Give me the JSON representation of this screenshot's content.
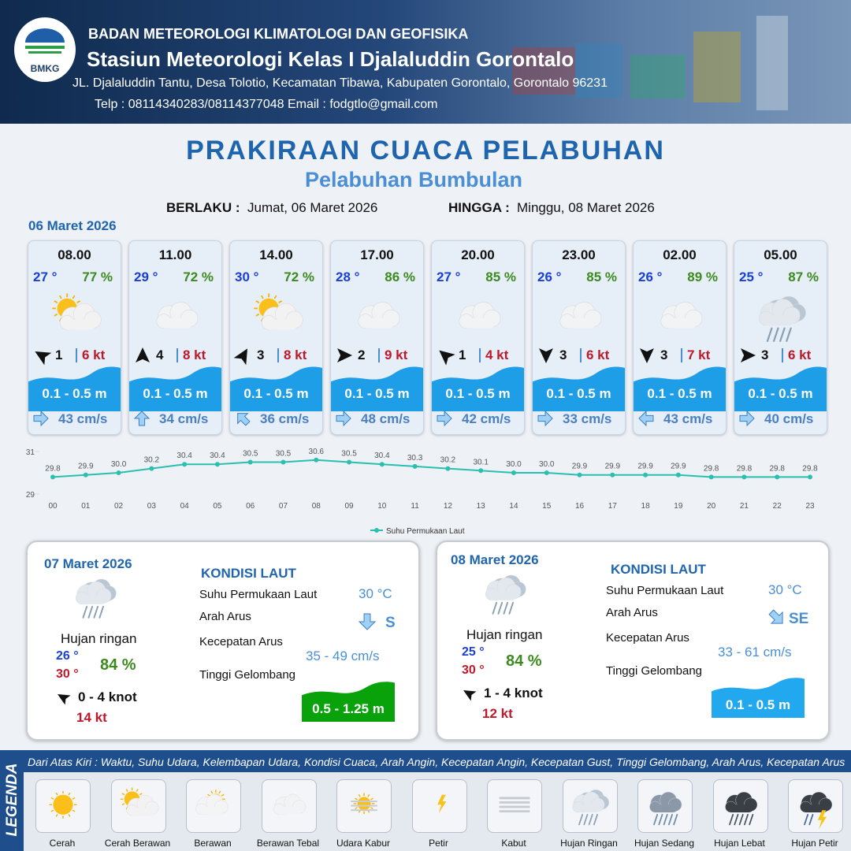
{
  "header": {
    "logo": "BMKG",
    "org": "BADAN METEOROLOGI KLIMATOLOGI DAN GEOFISIKA",
    "station": "Stasiun Meteorologi Kelas I Djalaluddin Gorontalo",
    "address": "JL. Djalaluddin Tantu, Desa Tolotio, Kecamatan Tibawa, Kabupaten Gorontalo, Gorontalo 96231",
    "contact": "Telp : 08114340283/08114377048 Email : fodgtlo@gmail.com"
  },
  "title": "PRAKIRAAN CUACA PELABUHAN",
  "subtitle": "Pelabuhan Bumbulan",
  "validity": {
    "from_label": "BERLAKU :",
    "from": "Jumat, 06 Maret 2026",
    "to_label": "HINGGA :",
    "to": "Minggu, 08 Maret 2026"
  },
  "day1": {
    "date": "06 Maret 2026",
    "cards": [
      {
        "time": "08.00",
        "temp": "27 °",
        "humidity": "77 %",
        "wind": "1",
        "gust": "6 kt",
        "wave": "0.1 - 0.5 m",
        "current": "43 cm/s"
      },
      {
        "time": "11.00",
        "temp": "29 °",
        "humidity": "72 %",
        "wind": "4",
        "gust": "8 kt",
        "wave": "0.1 - 0.5 m",
        "current": "34 cm/s"
      },
      {
        "time": "14.00",
        "temp": "30 °",
        "humidity": "72 %",
        "wind": "3",
        "gust": "8 kt",
        "wave": "0.1 - 0.5 m",
        "current": "36 cm/s"
      },
      {
        "time": "17.00",
        "temp": "28 °",
        "humidity": "86 %",
        "wind": "2",
        "gust": "9 kt",
        "wave": "0.1 - 0.5 m",
        "current": "48 cm/s"
      },
      {
        "time": "20.00",
        "temp": "27 °",
        "humidity": "85 %",
        "wind": "1",
        "gust": "4 kt",
        "wave": "0.1 - 0.5 m",
        "current": "42 cm/s"
      },
      {
        "time": "23.00",
        "temp": "26 °",
        "humidity": "85 %",
        "wind": "3",
        "gust": "6 kt",
        "wave": "0.1 - 0.5 m",
        "current": "33 cm/s"
      },
      {
        "time": "02.00",
        "temp": "26 °",
        "humidity": "89 %",
        "wind": "3",
        "gust": "7 kt",
        "wave": "0.1 - 0.5 m",
        "current": "43 cm/s"
      },
      {
        "time": "05.00",
        "temp": "25 °",
        "humidity": "87 %",
        "wind": "3",
        "gust": "6 kt",
        "wave": "0.1 - 0.5 m",
        "current": "40 cm/s"
      }
    ]
  },
  "chart_data": {
    "type": "line",
    "categories": [
      "00",
      "01",
      "02",
      "03",
      "04",
      "05",
      "06",
      "07",
      "08",
      "09",
      "10",
      "11",
      "12",
      "13",
      "14",
      "15",
      "16",
      "17",
      "18",
      "19",
      "20",
      "21",
      "22",
      "23"
    ],
    "series": [
      {
        "name": "Suhu Permukaan Laut",
        "color": "#2bbfb0",
        "values": [
          29.8,
          29.9,
          30.0,
          30.2,
          30.4,
          30.4,
          30.5,
          30.5,
          30.6,
          30.5,
          30.4,
          30.3,
          30.2,
          30.1,
          30.0,
          30.0,
          29.9,
          29.9,
          29.9,
          29.9,
          29.8,
          29.8,
          29.8,
          29.8
        ],
        "value_labels": [
          "29.8",
          "29.9",
          "30.0",
          "30.2",
          "30.4",
          "30.4",
          "30.5",
          "30.5",
          "30.6",
          "30.5",
          "30.4",
          "30.3",
          "30.2",
          "30.1",
          "30.0",
          "30.0",
          "29.9",
          "29.9",
          "29.9",
          "29.9",
          "29.8",
          "29.8",
          "29.8",
          "29.8"
        ]
      }
    ],
    "ylim": [
      29,
      31
    ],
    "yticks": [
      29,
      31
    ]
  },
  "days": [
    {
      "date": "07 Maret 2026",
      "weather": "Hujan ringan",
      "temp_min": "26 °",
      "temp_max": "30 °",
      "humidity": "84 %",
      "wind": "0  - 4 knot",
      "gust": "14 kt",
      "sea_title": "KONDISI LAUT",
      "sea_labels": [
        "Suhu Permukaan Laut",
        "Arah Arus",
        "Kecepatan Arus",
        "Tinggi Gelombang"
      ],
      "sst": "30 °C",
      "current_dir": "S",
      "current_speed": "35  - 49 cm/s",
      "wave": "0.5 - 1.25 m"
    },
    {
      "date": "08 Maret 2026",
      "weather": "Hujan ringan",
      "temp_min": "25 °",
      "temp_max": "30 °",
      "humidity": "84 %",
      "wind": "1 - 4 knot",
      "gust": "12 kt",
      "sea_title": "KONDISI LAUT",
      "sea_labels": [
        "Suhu Permukaan Laut",
        "Arah Arus",
        "Kecepatan Arus",
        "Tinggi Gelombang"
      ],
      "sst": "30 °C",
      "current_dir": "SE",
      "current_speed": "33 - 61 cm/s",
      "wave": "0.1 - 0.5 m"
    }
  ],
  "legend": {
    "title": "LEGENDA",
    "description": "Dari Atas Kiri : Waktu, Suhu Udara, Kelembapan Udara, Kondisi Cuaca, Arah Angin, Kecepatan Angin, Kecepatan Gust, Tinggi Gelombang, Arah Arus, Kecepatan Arus",
    "items": [
      "Cerah",
      "Cerah Berawan",
      "Berawan",
      "Berawan Tebal",
      "Udara Kabur",
      "Petir",
      "Kabut",
      "Hujan Ringan",
      "Hujan Sedang",
      "Hujan Lebat",
      "Hujan Petir"
    ]
  }
}
